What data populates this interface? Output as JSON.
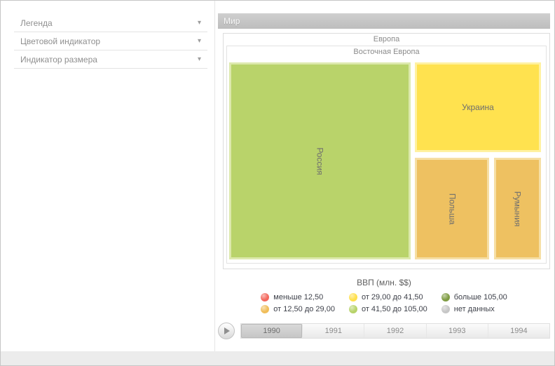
{
  "sidebar": {
    "items": [
      {
        "label": "Легенда"
      },
      {
        "label": "Цветовой индикатор"
      },
      {
        "label": "Индикатор размера"
      }
    ]
  },
  "main": {
    "title": "Мир"
  },
  "treemap": {
    "group": "Европа",
    "subgroup": "Восточная Европа",
    "tiles": [
      {
        "id": "russia",
        "name": "Россия",
        "fill": "#b9d36a",
        "halo": "#dde9ad",
        "label_orientation": "vertical"
      },
      {
        "id": "ukraine",
        "name": "Украина",
        "fill": "#ffe24f",
        "halo": "#fff1a1",
        "label_orientation": "horizontal"
      },
      {
        "id": "poland",
        "name": "Польша",
        "fill": "#eec161",
        "halo": "#f6dfa5",
        "label_orientation": "vertical"
      },
      {
        "id": "romania",
        "name": "Румыния",
        "fill": "#eec161",
        "halo": "#f6dfa5",
        "label_orientation": "vertical"
      }
    ]
  },
  "legend": {
    "title": "ВВП (млн. $$)",
    "items": [
      {
        "label": "меньше 12,50",
        "color": "#f3685d"
      },
      {
        "label": "от 29,00 до 41,50",
        "color": "#ffe04c"
      },
      {
        "label": "больше 105,00",
        "color": "#7f9c43"
      },
      {
        "label": "от 12,50 до 29,00",
        "color": "#f0bd58"
      },
      {
        "label": "от 41,50 до 105,00",
        "color": "#b7d369"
      },
      {
        "label": "нет данных",
        "color": "#c6c6c6"
      }
    ]
  },
  "timeline": {
    "years": [
      "1990",
      "1991",
      "1992",
      "1993",
      "1994"
    ],
    "selected_year": "1990"
  },
  "chart_data": {
    "type": "treemap",
    "title": "Мир",
    "hierarchy": [
      "Мир",
      "Европа",
      "Восточная Европа"
    ],
    "color_metric": "ВВП (млн. $$)",
    "color_bins": [
      {
        "label": "меньше 12,50",
        "color": "#f3685d"
      },
      {
        "label": "от 12,50 до 29,00",
        "color": "#f0bd58"
      },
      {
        "label": "от 29,00 до 41,50",
        "color": "#ffe04c"
      },
      {
        "label": "от 41,50 до 105,00",
        "color": "#b7d369"
      },
      {
        "label": "больше 105,00",
        "color": "#7f9c43"
      },
      {
        "label": "нет данных",
        "color": "#c6c6c6"
      }
    ],
    "nodes": [
      {
        "name": "Россия",
        "color_bin": "от 41,50 до 105,00",
        "area_fraction": 0.61
      },
      {
        "name": "Украина",
        "color_bin": "от 29,00 до 41,50",
        "area_fraction": 0.19
      },
      {
        "name": "Польша",
        "color_bin": "от 12,50 до 29,00",
        "area_fraction": 0.12
      },
      {
        "name": "Румыния",
        "color_bin": "от 12,50 до 29,00",
        "area_fraction": 0.08
      }
    ],
    "timeline": {
      "years": [
        "1990",
        "1991",
        "1992",
        "1993",
        "1994"
      ],
      "selected": "1990"
    },
    "legend_position": "bottom-center"
  }
}
